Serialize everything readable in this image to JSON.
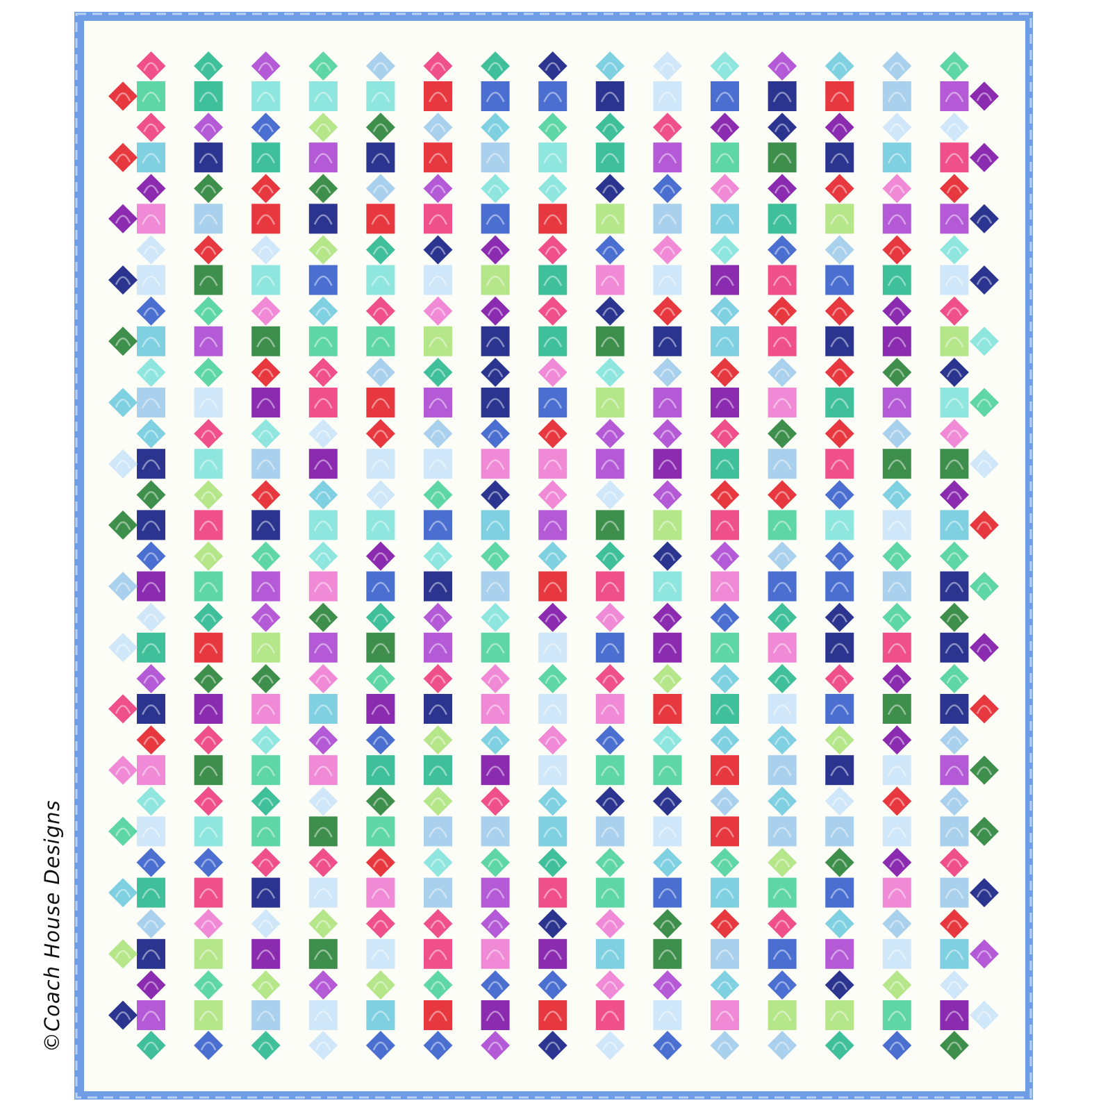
{
  "credit": "©Coach House Designs",
  "colors": {
    "background": "#fdfdf8",
    "border": "#6f9ee6",
    "border_light": "#b9d2f4",
    "palette": [
      "#2b3590",
      "#4a6fd0",
      "#a9d0ec",
      "#8fe6de",
      "#5fd6a6",
      "#3f8f4c",
      "#b5e68a",
      "#f08ad6",
      "#f0508a",
      "#e8383f",
      "#8a2bb0",
      "#b45ad6",
      "#3fc09a",
      "#cfe7f8",
      "#7fd0e0"
    ]
  },
  "quilt": {
    "columns": 15,
    "square_rows": 16
  }
}
